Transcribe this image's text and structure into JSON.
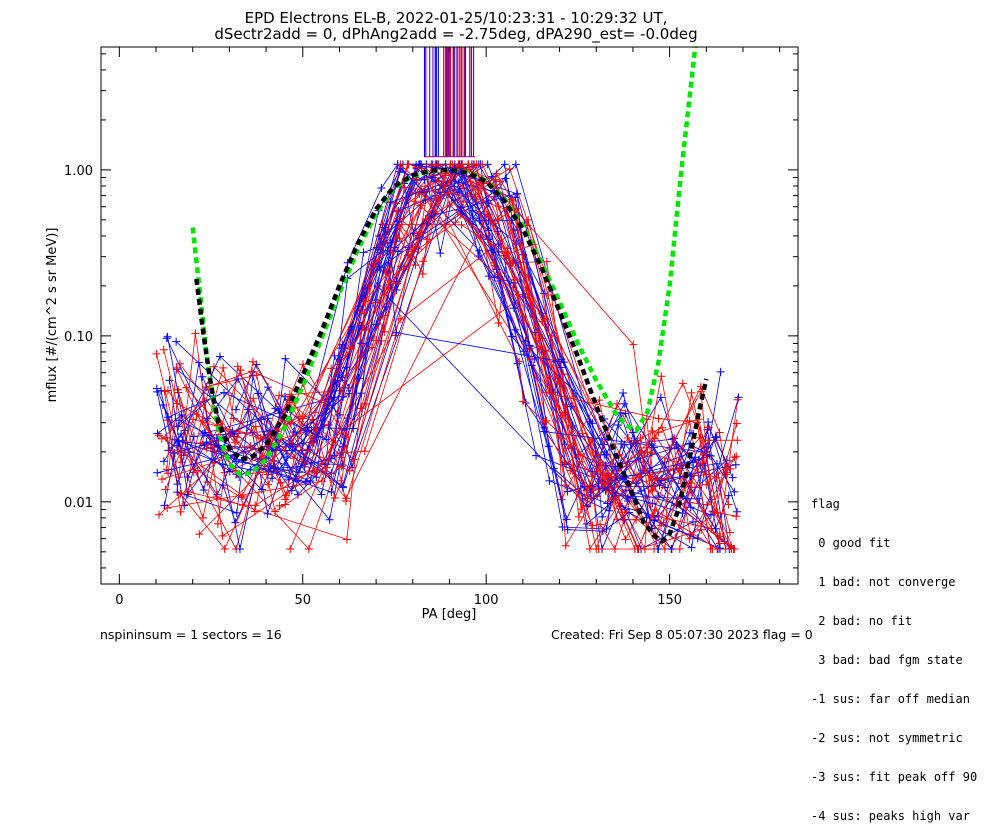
{
  "chart_data": {
    "type": "line",
    "title": "EPD Electrons EL-B, 2022-01-25/10:23:31 - 10:29:32 UT,",
    "subtitle": "dSectr2add = 0, dPhAng2add = -2.75deg, dPA290_est=  -0.0deg",
    "xlabel": "PA [deg]",
    "ylabel": "mflux [#/(cm^2 s sr MeV)]",
    "x_ticks": [
      "0",
      "50",
      "100",
      "150"
    ],
    "x_tick_values": [
      0,
      50,
      100,
      150
    ],
    "y_ticks": [
      "0.01",
      "0.10",
      "1.00"
    ],
    "y_tick_values": [
      0.01,
      0.1,
      1.0
    ],
    "xlim": [
      -5,
      185
    ],
    "ylim": [
      0.0032,
      5.5
    ],
    "y_scale": "log",
    "grid": false,
    "colors": {
      "series_a": "#ff0000",
      "series_b": "#0000ff",
      "fit_green": "#00e600",
      "fit_black": "#000000",
      "marker_lines": "#8b008b"
    },
    "pa_bins": [
      12,
      17,
      22,
      27,
      32,
      37,
      42,
      47,
      52,
      57,
      62,
      67,
      72,
      77,
      82,
      87,
      92,
      97,
      102,
      107,
      112,
      117,
      122,
      127,
      132,
      137,
      142,
      147,
      152,
      157,
      162,
      167
    ],
    "fits": [
      {
        "color": "green",
        "x": [
          20,
          22,
          24,
          26,
          28,
          30,
          33,
          36,
          40,
          45,
          50,
          55,
          60,
          65,
          70,
          75,
          80,
          85,
          90,
          95,
          100,
          105,
          110,
          115,
          120,
          125,
          130,
          135,
          138,
          141,
          144,
          147,
          150,
          153,
          156,
          157
        ],
        "y": [
          0.45,
          0.18,
          0.07,
          0.035,
          0.022,
          0.017,
          0.0145,
          0.015,
          0.018,
          0.028,
          0.05,
          0.095,
          0.18,
          0.33,
          0.55,
          0.78,
          0.92,
          0.98,
          1.0,
          0.97,
          0.86,
          0.67,
          0.46,
          0.28,
          0.16,
          0.09,
          0.054,
          0.035,
          0.029,
          0.027,
          0.035,
          0.07,
          0.2,
          0.9,
          3.5,
          5.5
        ]
      },
      {
        "color": "black",
        "x": [
          21,
          23,
          25,
          27,
          30,
          33,
          36,
          40,
          45,
          50,
          55,
          60,
          65,
          70,
          75,
          80,
          85,
          90,
          95,
          100,
          105,
          110,
          115,
          120,
          125,
          130,
          135,
          140,
          143,
          146,
          148,
          150,
          152,
          154,
          156,
          158,
          160
        ],
        "y": [
          0.22,
          0.1,
          0.05,
          0.03,
          0.021,
          0.018,
          0.0185,
          0.022,
          0.033,
          0.058,
          0.105,
          0.2,
          0.36,
          0.58,
          0.8,
          0.93,
          0.99,
          1.0,
          0.96,
          0.85,
          0.65,
          0.44,
          0.26,
          0.14,
          0.075,
          0.038,
          0.02,
          0.011,
          0.0075,
          0.0062,
          0.0058,
          0.0064,
          0.0085,
          0.013,
          0.021,
          0.035,
          0.055
        ]
      }
    ]
  },
  "legend": {
    "heading": "flag",
    "items": [
      " 0 good fit",
      " 1 bad: not converge",
      " 2 bad: no fit",
      " 3 bad: bad fgm state",
      "-1 sus: far off median",
      "-2 sus: not symmetric",
      "-3 sus: fit peak off 90",
      "-4 sus: peaks high var"
    ]
  },
  "footer": {
    "left": "nspininsum =  1  sectors = 16",
    "right": "Created: Fri Sep  8 05:07:30 2023   flag = 0"
  }
}
